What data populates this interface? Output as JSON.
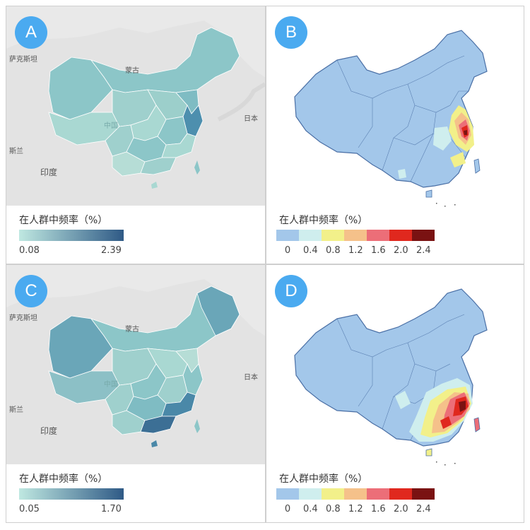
{
  "panels": {
    "a": {
      "label": "A",
      "map_labels": {
        "kazakhstan": "萨克斯坦",
        "mongolia": "蒙古",
        "japan": "日本",
        "china": "中国",
        "nepal": "斯兰",
        "india": "印度"
      },
      "legend": {
        "title": "在人群中频率（%）",
        "min": "0.08",
        "max": "2.39",
        "color_low": "#bfe8e1",
        "color_high": "#2f5a86"
      },
      "style": "choropleth"
    },
    "b": {
      "label": "B",
      "legend": {
        "title": "在人群中频率（%）",
        "ticks": [
          "0",
          "0.4",
          "0.8",
          "1.2",
          "1.6",
          "2.0",
          "2.4"
        ],
        "colors": [
          "#a3c7ea",
          "#cfeeee",
          "#f2f08a",
          "#f5c18a",
          "#ec6e78",
          "#e0281e",
          "#7a1212"
        ]
      },
      "style": "heat"
    },
    "c": {
      "label": "C",
      "map_labels": {
        "kazakhstan": "萨克斯坦",
        "mongolia": "蒙古",
        "japan": "日本",
        "china": "中国",
        "nepal": "斯兰",
        "india": "印度"
      },
      "legend": {
        "title": "在人群中频率（%）",
        "min": "0.05",
        "max": "1.70",
        "color_low": "#bfe8e1",
        "color_high": "#2f5a86"
      },
      "style": "choropleth"
    },
    "d": {
      "label": "D",
      "legend": {
        "title": "在人群中频率（%）",
        "ticks": [
          "0",
          "0.4",
          "0.8",
          "1.2",
          "1.6",
          "2.0",
          "2.4"
        ],
        "colors": [
          "#a3c7ea",
          "#cfeeee",
          "#f2f08a",
          "#f5c18a",
          "#ec6e78",
          "#e0281e",
          "#7a1212"
        ]
      },
      "style": "heat"
    }
  }
}
